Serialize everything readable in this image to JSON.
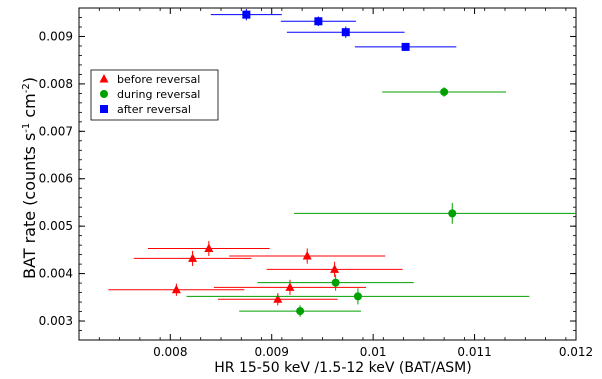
{
  "chart_data": {
    "type": "scatter",
    "xlabel": "HR    15-50 keV /1.5-12 keV          (BAT/ASM)",
    "ylabel": "BAT rate  (counts s-1 cm-2)",
    "xlim": [
      0.0071,
      0.012
    ],
    "ylim": [
      0.0026,
      0.0096
    ],
    "xticks": [
      0.008,
      0.009,
      0.01,
      0.011,
      0.012
    ],
    "xtick_labels": [
      "0.008",
      "0.009",
      "0.01",
      "0.011",
      "0.012"
    ],
    "yticks": [
      0.003,
      0.004,
      0.005,
      0.006,
      0.007,
      0.008,
      0.009
    ],
    "ytick_labels": [
      "0.003",
      "0.004",
      "0.005",
      "0.006",
      "0.007",
      "0.008",
      "0.009"
    ],
    "grid": false,
    "legend_position": "top-left",
    "error_bars": true,
    "series": [
      {
        "name": "before reversal",
        "marker": "triangle",
        "color": "#ff0000",
        "points": [
          {
            "x": 0.00838,
            "y": 0.00453,
            "xerr": 0.0006,
            "yerr": 0.00016
          },
          {
            "x": 0.00822,
            "y": 0.00432,
            "xerr": 0.00058,
            "yerr": 0.00016
          },
          {
            "x": 0.00935,
            "y": 0.00437,
            "xerr": 0.00077,
            "yerr": 0.00016
          },
          {
            "x": 0.00962,
            "y": 0.00409,
            "xerr": 0.00067,
            "yerr": 0.00016
          },
          {
            "x": 0.00806,
            "y": 0.00366,
            "xerr": 0.00067,
            "yerr": 0.00013
          },
          {
            "x": 0.00918,
            "y": 0.00371,
            "xerr": 0.00075,
            "yerr": 0.00016
          },
          {
            "x": 0.00906,
            "y": 0.00346,
            "xerr": 0.00059,
            "yerr": 0.00013
          }
        ]
      },
      {
        "name": "during  reversal",
        "marker": "circle",
        "color": "#00a000",
        "points": [
          {
            "x": 0.0107,
            "y": 0.00783,
            "xerr": 0.00061,
            "yerr": 0.0001
          },
          {
            "x": 0.01078,
            "y": 0.00527,
            "xerr": 0.00156,
            "yerr": 0.00022
          },
          {
            "x": 0.00963,
            "y": 0.00381,
            "xerr": 0.00077,
            "yerr": 0.00017
          },
          {
            "x": 0.00985,
            "y": 0.00352,
            "xerr": 0.00169,
            "yerr": 0.00017
          },
          {
            "x": 0.00928,
            "y": 0.00321,
            "xerr": 0.0006,
            "yerr": 0.00012
          }
        ]
      },
      {
        "name": "after reversal",
        "marker": "square",
        "color": "#0000ff",
        "points": [
          {
            "x": 0.00875,
            "y": 0.00946,
            "xerr": 0.00035,
            "yerr": 0.00012
          },
          {
            "x": 0.00946,
            "y": 0.00932,
            "xerr": 0.00037,
            "yerr": 0.0001
          },
          {
            "x": 0.00973,
            "y": 0.00909,
            "xerr": 0.00058,
            "yerr": 0.00012
          },
          {
            "x": 0.01032,
            "y": 0.00878,
            "xerr": 0.0005,
            "yerr": 8e-05
          }
        ]
      }
    ]
  }
}
